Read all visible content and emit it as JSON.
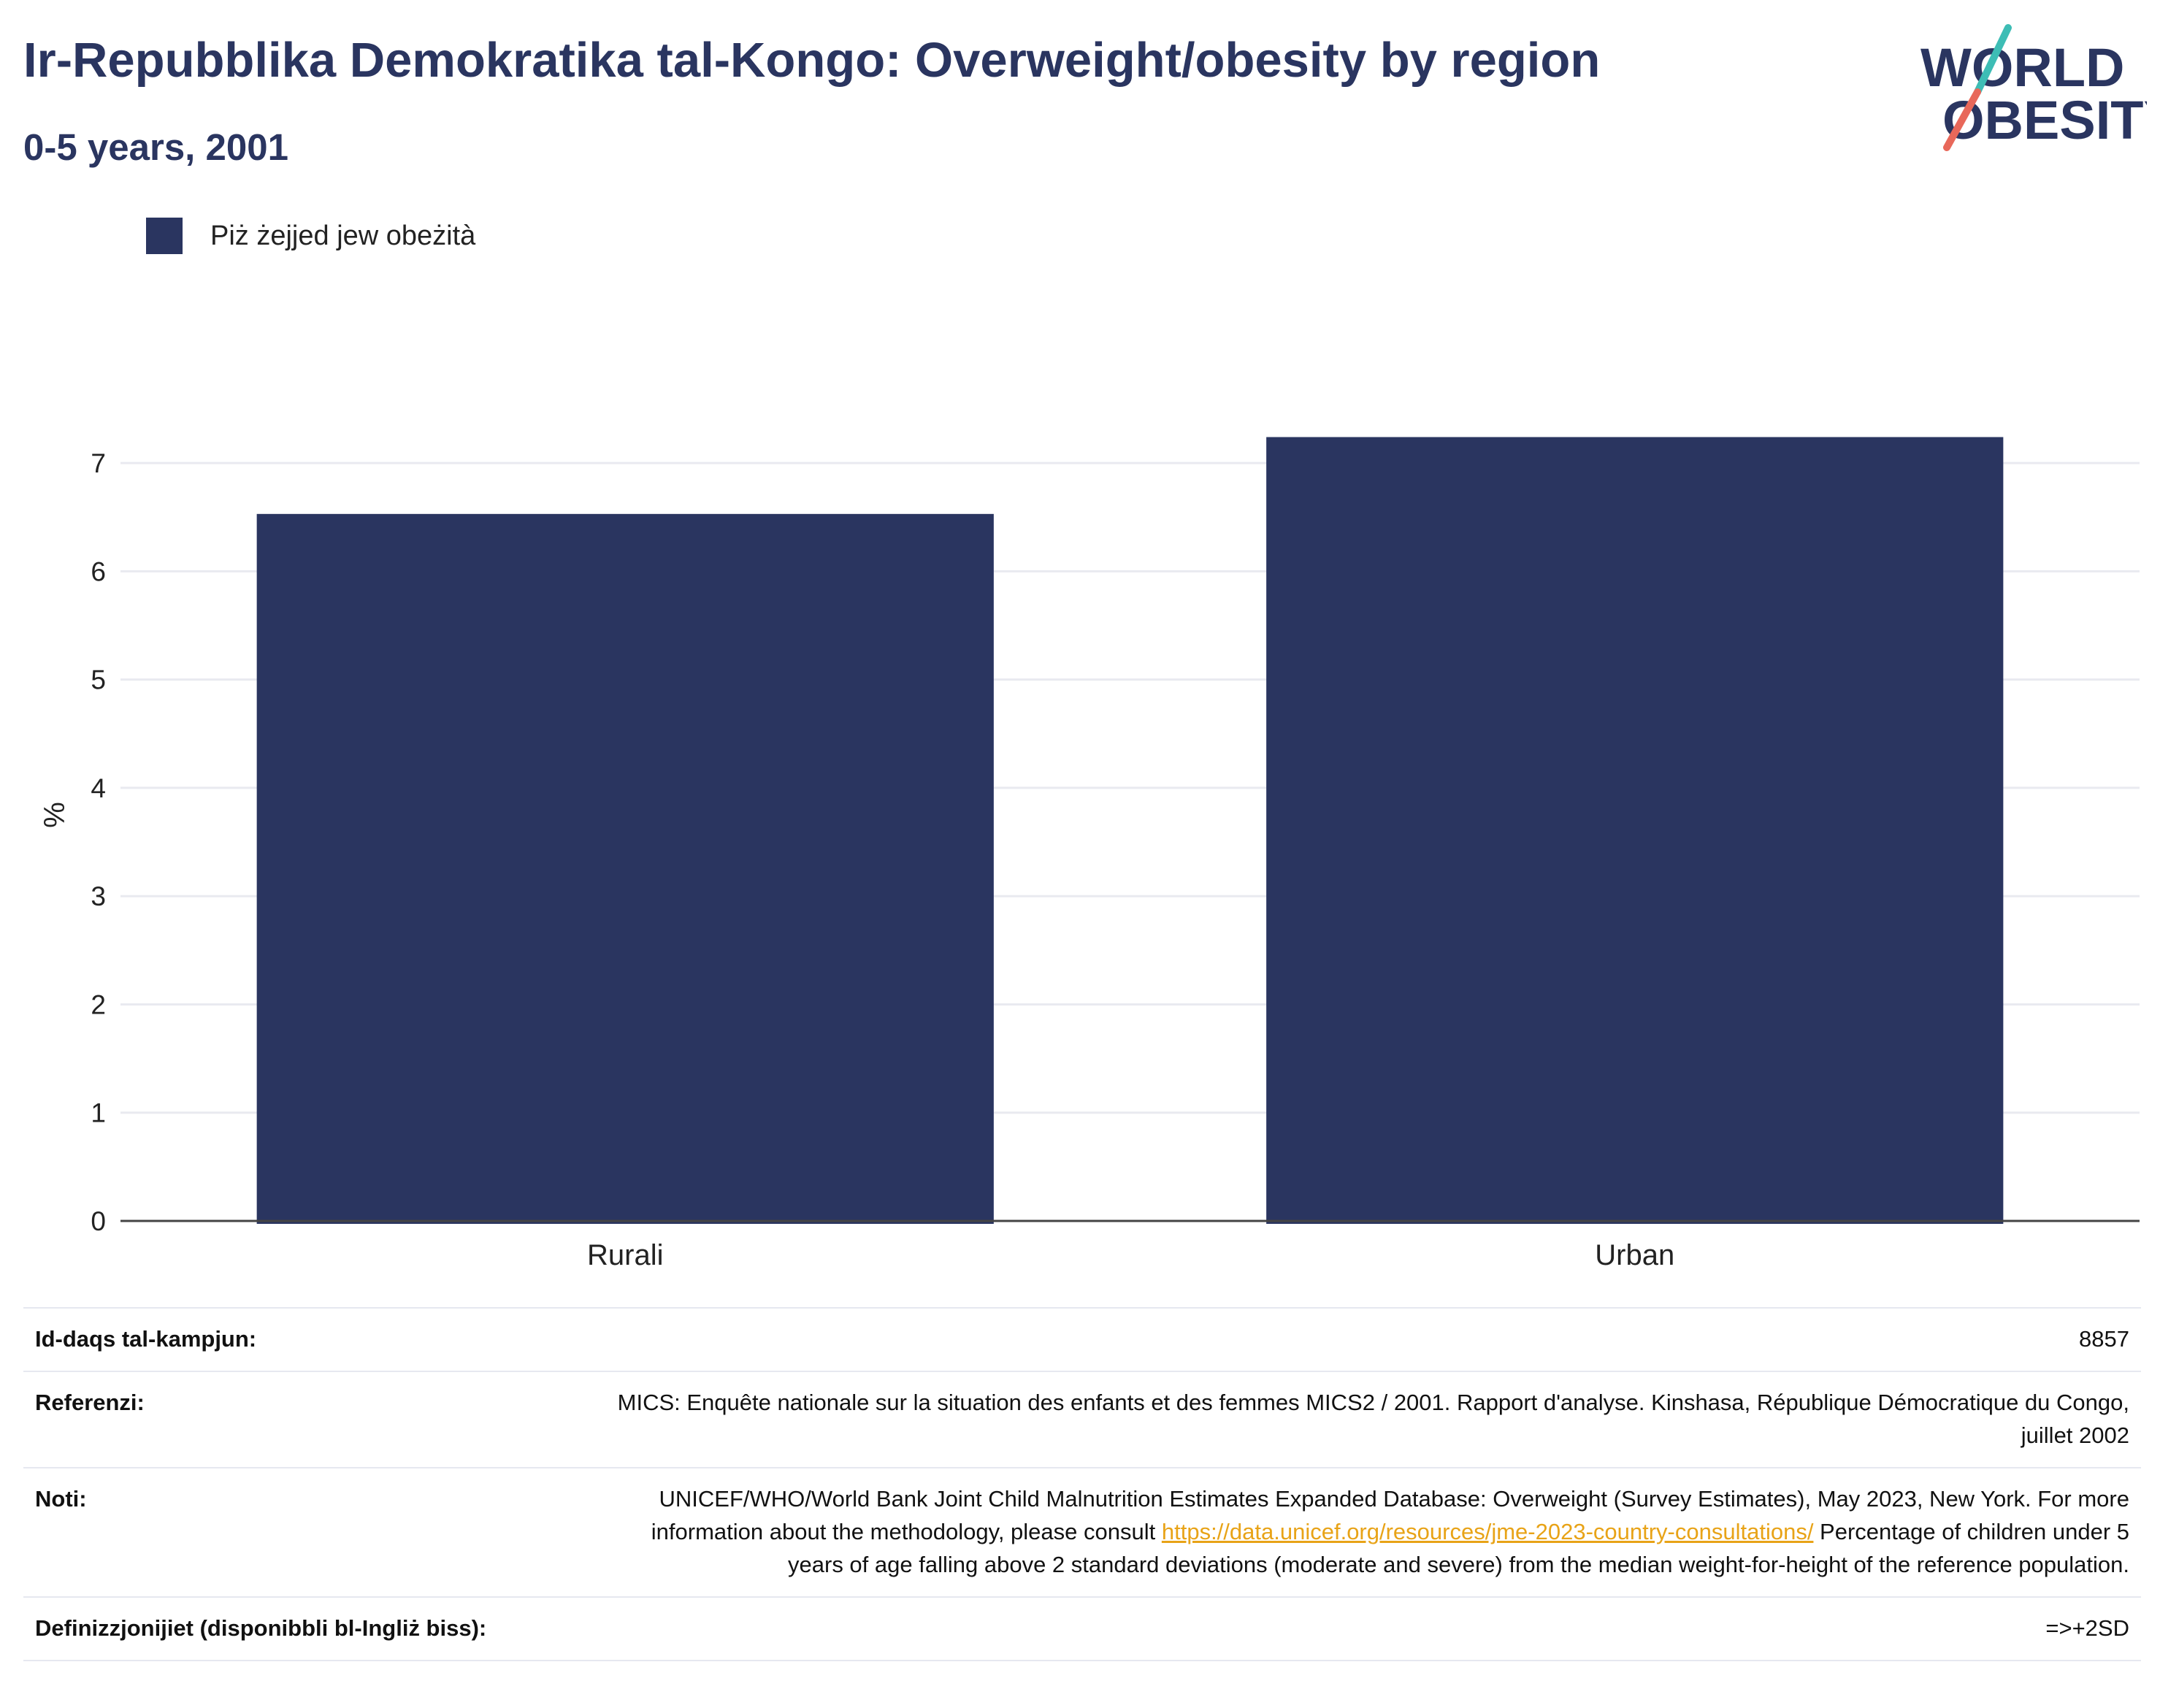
{
  "title": "Ir-Repubblika Demokratika tal-Kongo: Overweight/obesity by region",
  "subtitle": "0-5 years, 2001",
  "logo": {
    "line1": "WORLD",
    "line2": "OBESITY",
    "colors": {
      "navy": "#2a3560",
      "teal": "#3dbdb5",
      "coral": "#e8685a"
    }
  },
  "legend": {
    "label": "Piż żejjed jew obeżità",
    "color": "#2a3560"
  },
  "chart_data": {
    "type": "bar",
    "categories": [
      "Rurali",
      "Urban"
    ],
    "series": [
      {
        "name": "Piż żejjed jew obeżità",
        "values": [
          6.53,
          7.24
        ],
        "color": "#2a3560"
      }
    ],
    "ylabel": "%",
    "ylim": [
      0,
      7.5
    ],
    "yticks": [
      0,
      1,
      2,
      3,
      4,
      5,
      6,
      7
    ],
    "grid": true,
    "legend_position": "top-left"
  },
  "info": {
    "sample_label": "Id-daqs tal-kampjun:",
    "sample_value": "8857",
    "references_label": "Referenzi:",
    "references_value": "MICS: Enquête nationale sur la situation des enfants et des femmes MICS2 / 2001. Rapport d'analyse. Kinshasa, République Démocratique du Congo, juillet 2002",
    "notes_label": "Noti:",
    "notes_pre": "UNICEF/WHO/World Bank Joint Child Malnutrition Estimates Expanded Database: Overweight (Survey Estimates), May 2023, New York. For more information about the methodology, please consult ",
    "notes_link": "https://data.unicef.org/resources/jme-2023-country-consultations/",
    "notes_post": " Percentage of children under 5 years of age falling above 2 standard deviations (moderate and severe) from the median weight-for-height of the reference population.",
    "definitions_label": "Definizzjonijiet (disponibbli bl-Ingliż biss):",
    "definitions_value": "=>+2SD"
  }
}
